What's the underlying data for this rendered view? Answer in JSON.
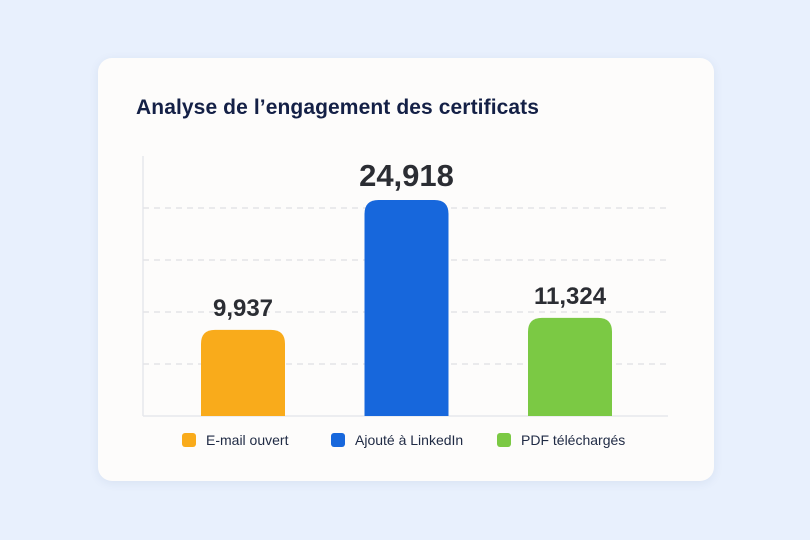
{
  "card": {
    "title": "Analyse de l’engagement des certificats"
  },
  "chart_data": {
    "type": "bar",
    "title": "Analyse de l’engagement des certificats",
    "categories": [
      "E-mail ouvert",
      "Ajouté à LinkedIn",
      "PDF téléchargés"
    ],
    "values": [
      9937,
      24918,
      11324
    ],
    "value_labels": [
      "9,937",
      "24,918",
      "11,324"
    ],
    "colors": [
      "#f9ab1b",
      "#1767dc",
      "#7bc944"
    ],
    "ylim": [
      0,
      30000
    ],
    "grid": true,
    "gridlines": [
      6000,
      12000,
      18000,
      24000
    ],
    "xlabel": "",
    "ylabel": "",
    "legend_position": "bottom"
  },
  "legend": {
    "items": [
      {
        "label": "E-mail ouvert",
        "color": "#f9ab1b"
      },
      {
        "label": "Ajouté à LinkedIn",
        "color": "#1767dc"
      },
      {
        "label": "PDF téléchargés",
        "color": "#7bc944"
      }
    ]
  }
}
